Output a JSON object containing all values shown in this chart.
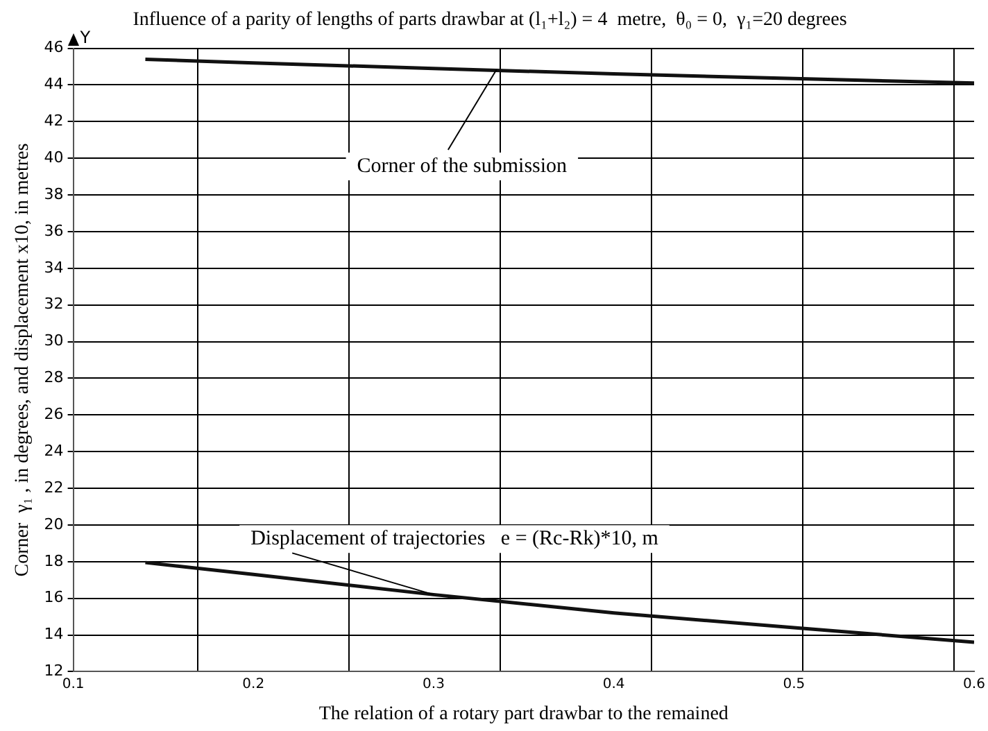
{
  "chart_data": {
    "type": "line",
    "title": "Influence of a parity of lengths of parts drawbar at (l₁+l₂) = 4  metre,  θ₀ = 0,  γ₁=20 degrees",
    "xlabel": "The relation of a rotary part drawbar to the remained",
    "ylabel": "Corner  γ₁ , in degrees, and displacement x10, in metres",
    "series": [
      {
        "color": "#111111",
        "x": [
          0.14,
          0.2,
          0.3,
          0.4,
          0.5,
          0.6
        ],
        "values": [
          45.4,
          45.2,
          44.9,
          44.6,
          44.35,
          44.1
        ]
      },
      {
        "color": "#111111",
        "x": [
          0.14,
          0.2,
          0.3,
          0.4,
          0.5,
          0.6
        ],
        "values": [
          17.95,
          17.3,
          16.2,
          15.2,
          14.4,
          13.6
        ]
      }
    ],
    "annotations": [
      {
        "text": "Corner of the submission",
        "x": 0.335,
        "y": 44.85
      },
      {
        "text": "Displacement of trajectories   e = (Rc-Rk)*10, m",
        "x": 0.3,
        "y": 16.2
      },
      "Y"
    ],
    "xlim": [
      0.1,
      0.6
    ],
    "xticks": [
      0.1,
      0.2,
      0.3,
      0.4,
      0.5,
      0.6,
      {
        "value": 0.169,
        "label": null
      },
      {
        "value": 0.253,
        "label": null
      },
      {
        "value": 0.337,
        "label": null
      },
      {
        "value": 0.421,
        "label": null
      },
      {
        "value": 0.505,
        "label": null
      },
      {
        "value": 0.589,
        "label": null
      }
    ],
    "ylim": [
      12,
      46
    ],
    "yticks": [
      12,
      14,
      16,
      18,
      20,
      22,
      24,
      26,
      28,
      30,
      32,
      34,
      36,
      38,
      40,
      42,
      44,
      46
    ],
    "grid": true,
    "legend": false,
    "marker": "none",
    "line_style": "solid"
  }
}
